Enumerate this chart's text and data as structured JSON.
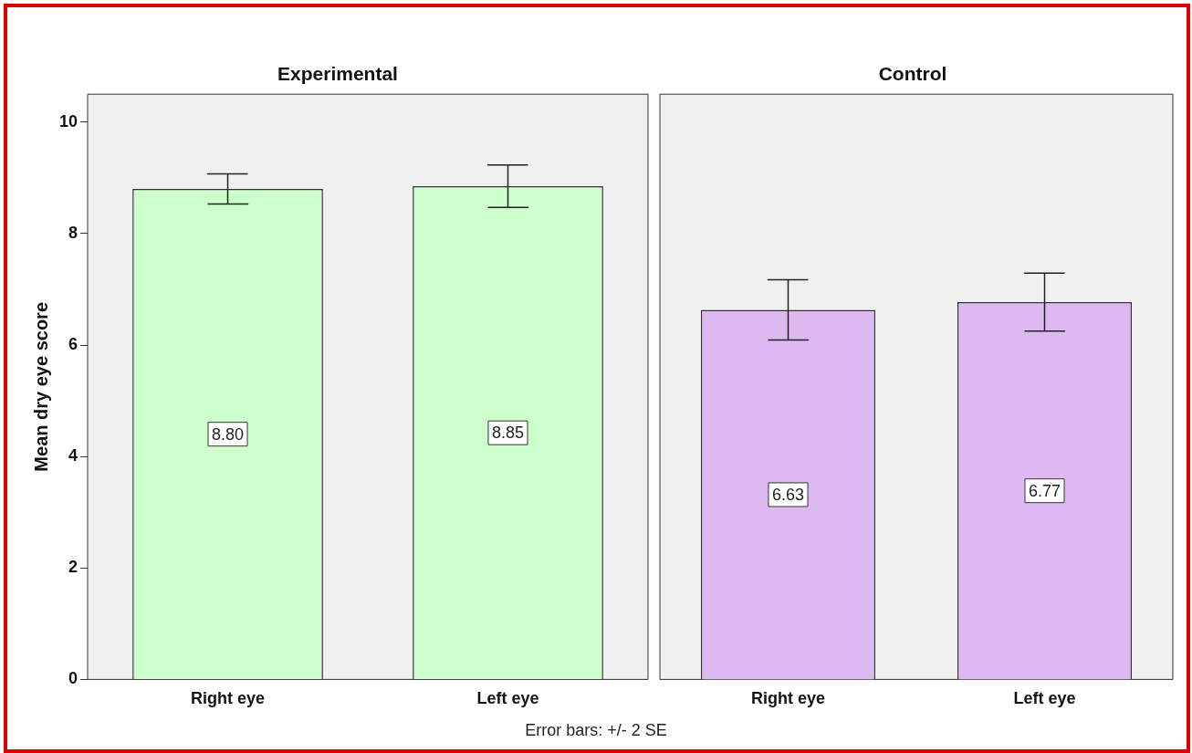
{
  "chart_data": [
    {
      "type": "bar",
      "title": "Experimental",
      "ylabel": "Mean dry eye score",
      "categories": [
        "Right eye",
        "Left eye"
      ],
      "series": [
        {
          "color": "#ccffcc",
          "values": [
            8.8,
            8.85
          ],
          "errors": [
            0.27,
            0.38
          ],
          "value_labels": [
            "8.80",
            "8.85"
          ]
        }
      ],
      "ylim": [
        0,
        10.5
      ],
      "yticks": [
        0,
        2,
        4,
        6,
        8,
        10
      ],
      "annotations": [
        "Error bars: +/- 2 SE"
      ]
    },
    {
      "type": "bar",
      "title": "Control",
      "categories": [
        "Right eye",
        "Left eye"
      ],
      "series": [
        {
          "color": "#dcb9f0",
          "values": [
            6.63,
            6.77
          ],
          "errors": [
            0.54,
            0.52
          ],
          "value_labels": [
            "6.63",
            "6.77"
          ]
        }
      ],
      "ylim": [
        0,
        10.5
      ],
      "yticks": [
        0,
        2,
        4,
        6,
        8,
        10
      ],
      "tick_labels": "x"
    }
  ]
}
